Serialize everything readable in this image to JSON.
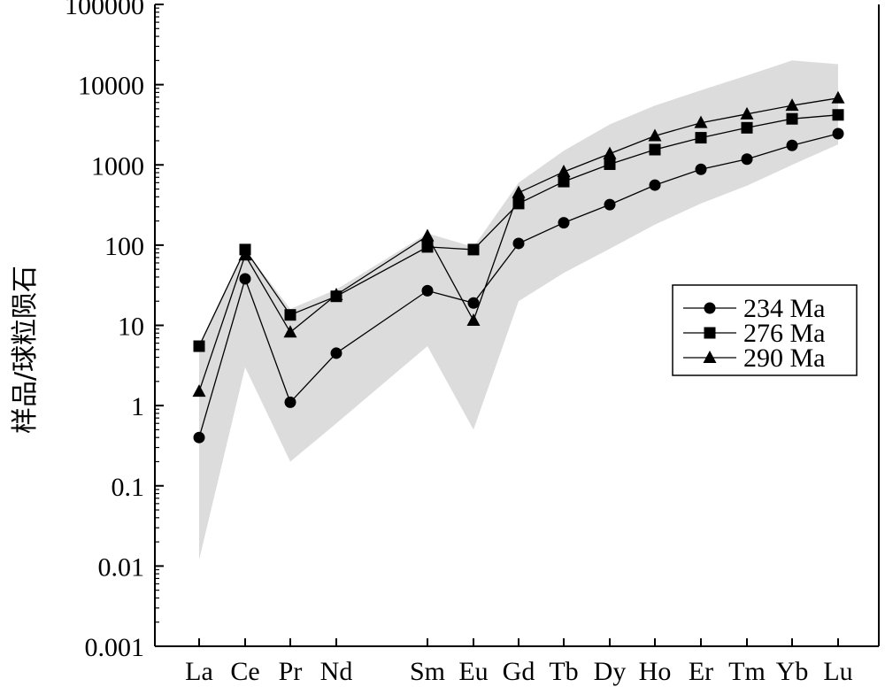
{
  "chart_data": {
    "type": "line",
    "yscale": "log",
    "ylim": [
      0.001,
      100000
    ],
    "ylabel": "样品/球粒陨石",
    "xlabel": "",
    "title": "",
    "categories": [
      "La",
      "Ce",
      "Pr",
      "Nd",
      "Sm",
      "Eu",
      "Gd",
      "Tb",
      "Dy",
      "Ho",
      "Er",
      "Tm",
      "Yb",
      "Lu"
    ],
    "yticks": [
      "0.001",
      "0.01",
      "0.1",
      "1",
      "10",
      "100",
      "1000",
      "10000",
      "100000"
    ],
    "legend": {
      "position": "right",
      "entries": [
        "234 Ma",
        "276 Ma",
        "290 Ma"
      ]
    },
    "series": [
      {
        "name": "234 Ma",
        "marker": "circle",
        "values": [
          0.4,
          38,
          1.1,
          4.5,
          27,
          19,
          105,
          190,
          320,
          560,
          880,
          1180,
          1750,
          2450
        ]
      },
      {
        "name": "276 Ma",
        "marker": "square",
        "values": [
          5.5,
          88,
          13.5,
          23,
          95,
          88,
          330,
          620,
          1020,
          1550,
          2180,
          2900,
          3750,
          4200
        ]
      },
      {
        "name": "290 Ma",
        "marker": "triangle",
        "values": [
          1.5,
          75,
          8.2,
          24,
          130,
          11.5,
          450,
          820,
          1380,
          2300,
          3350,
          4300,
          5500,
          6800
        ]
      }
    ],
    "envelope": {
      "color": "#dcdcdc",
      "upper": [
        5.5,
        88,
        16,
        28,
        140,
        95,
        600,
        1500,
        3200,
        5500,
        8500,
        13000,
        20000,
        18000
      ],
      "lower": [
        0.012,
        3,
        0.2,
        0.6,
        5.5,
        0.5,
        20,
        45,
        90,
        180,
        330,
        550,
        1000,
        1800
      ]
    }
  }
}
